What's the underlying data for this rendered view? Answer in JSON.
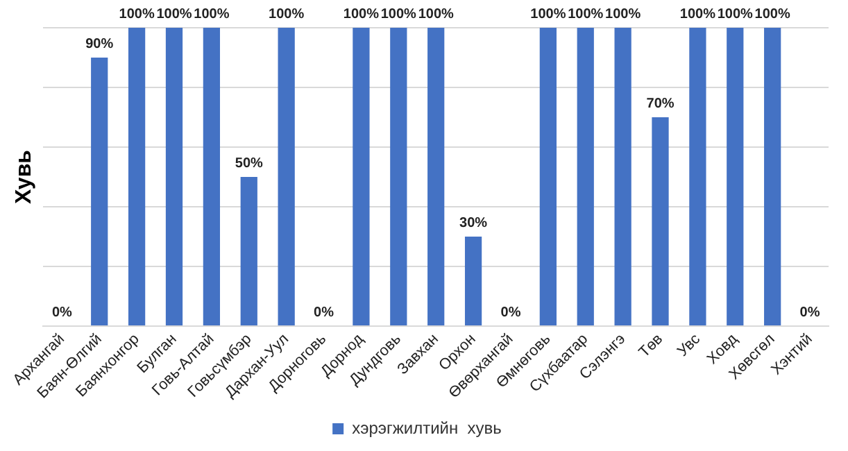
{
  "chart_data": {
    "type": "bar",
    "ylabel": "Хувь",
    "categories": [
      "Архангай",
      "Баян-Өлгий",
      "Баянхонгор",
      "Булган",
      "Говь-Алтай",
      "Говьсүмбэр",
      "Дархан-Уул",
      "Дорноговь",
      "Дорнод",
      "Дундговь",
      "Завхан",
      "Орхон",
      "Өвөрхангай",
      "Өмнөговь",
      "Сүхбаатар",
      "Сэлэнгэ",
      "Төв",
      "Увс",
      "Ховд",
      "Хөвсгөл",
      "Хэнтий"
    ],
    "series": [
      {
        "name": "хэрэгжилтийн  хувь",
        "color": "#4472c4",
        "values": [
          0,
          90,
          100,
          100,
          100,
          50,
          100,
          0,
          100,
          100,
          100,
          30,
          0,
          100,
          100,
          100,
          70,
          100,
          100,
          100,
          0
        ],
        "value_labels": [
          "0%",
          "90%",
          "100%",
          "100%",
          "100%",
          "50%",
          "100%",
          "0%",
          "100%",
          "100%",
          "100%",
          "30%",
          "0%",
          "100%",
          "100%",
          "100%",
          "70%",
          "100%",
          "100%",
          "100%",
          "0%"
        ]
      }
    ],
    "ylim": [
      0,
      100
    ],
    "yticks": [
      {
        "value": 0,
        "label": null
      },
      {
        "value": 20,
        "label": null
      },
      {
        "value": 40,
        "label": null
      },
      {
        "value": 60,
        "label": null
      },
      {
        "value": 80,
        "label": null
      },
      {
        "value": 100,
        "label": null
      }
    ],
    "grid": "y",
    "legend": "bottom",
    "tick_labels": "x"
  }
}
